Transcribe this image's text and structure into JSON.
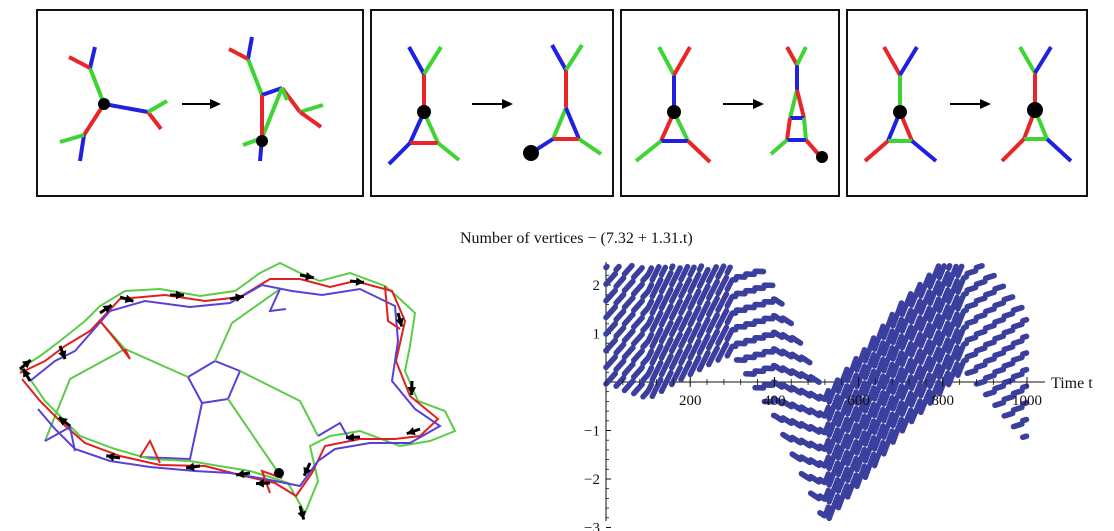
{
  "rules": {
    "count": 4,
    "arrow": "→"
  },
  "colors": {
    "red": "#e8262a",
    "green": "#3ed534",
    "blue": "#2020e0",
    "vertex": "#000000",
    "frame": "#111111",
    "network_red": "#e02020",
    "network_green": "#5ccc48",
    "network_blue": "#5a40d8",
    "point": "#3b3f9e"
  },
  "chart_data": {
    "type": "scatter",
    "title": "Number of vertices − (7.32 + 1.31.t)",
    "xlabel": "Time t",
    "ylabel": "",
    "xlim": [
      0,
      1000
    ],
    "ylim": [
      -3,
      2.5
    ],
    "xticks": [
      200,
      400,
      600,
      800,
      1000
    ],
    "yticks": [
      -3,
      -2,
      -1,
      1,
      2
    ],
    "xtick_labels": [
      "200",
      "400",
      "600",
      "800",
      "1000"
    ],
    "ytick_labels": [
      "−3",
      "−2",
      "−1",
      "1",
      "2"
    ],
    "series": [
      {
        "description_points": "dense diagonal bands of points; envelope: low ~ -0.5 at t=0, peak ~ 2.3 at t≈250-300, minimum ~ -2.9 at t≈520, rise to ~ 2.3 at t≈850, ~ 0.3 at t=1000",
        "envelope": [
          [
            0,
            1.3
          ],
          [
            100,
            1.0
          ],
          [
            250,
            1.7
          ],
          [
            300,
            1.9
          ],
          [
            400,
            0.6
          ],
          [
            520,
            -1.6
          ],
          [
            600,
            -0.8
          ],
          [
            700,
            0.3
          ],
          [
            850,
            1.6
          ],
          [
            1000,
            0.1
          ]
        ],
        "band_half_width": 1.2,
        "color": "#3b3f9e"
      }
    ]
  }
}
